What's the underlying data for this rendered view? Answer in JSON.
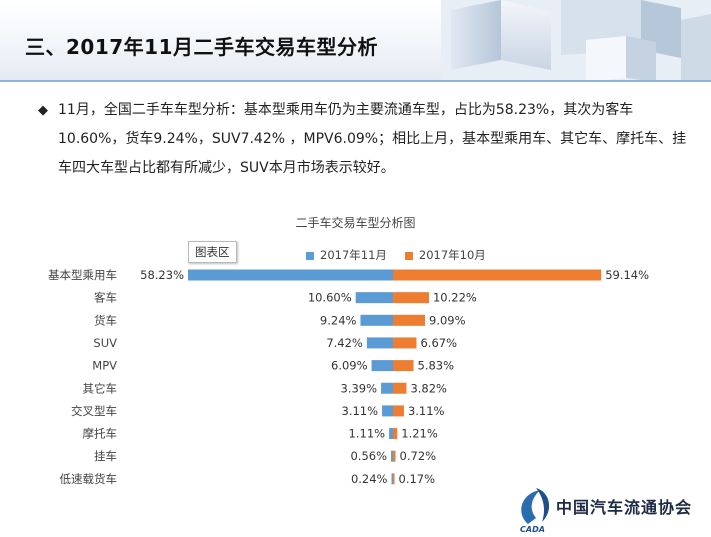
{
  "header": {
    "title": "三、2017年11月二手车交易车型分析"
  },
  "summary": {
    "bullet": "◆",
    "text": "11月，全国二手车车型分析：基本型乘用车仍为主要流通车型，占比为58.23%，其次为客车10.60%，货车9.24%，SUV7.42% ，MPV6.09%；相比上月，基本型乘用车、其它车、摩托车、挂车四大车型占比都有所减少，SUV本月市场表示较好。"
  },
  "chart_area_tag": "图表区",
  "logo": {
    "name": "中国汽车流通协会"
  },
  "chart_data": {
    "type": "bar",
    "orientation": "horizontal-diverging",
    "title": "二手车交易车型分析图",
    "categories": [
      "基本型乘用车",
      "客车",
      "货车",
      "SUV",
      "MPV",
      "其它车",
      "交叉型车",
      "摩托车",
      "挂车",
      "低速载货车"
    ],
    "series": [
      {
        "name": "2017年11月",
        "color": "#5b9bd5",
        "direction": "left",
        "values": [
          58.23,
          10.6,
          9.24,
          7.42,
          6.09,
          3.39,
          3.11,
          1.11,
          0.56,
          0.24
        ],
        "labels": [
          "58.23%",
          "10.60%",
          "9.24%",
          "7.42%",
          "6.09%",
          "3.39%",
          "3.11%",
          "1.11%",
          "0.56%",
          "0.24%"
        ]
      },
      {
        "name": "2017年10月",
        "color": "#ed7d31",
        "direction": "right",
        "values": [
          59.14,
          10.22,
          9.09,
          6.67,
          5.83,
          3.82,
          3.11,
          1.21,
          0.72,
          0.17
        ],
        "labels": [
          "59.14%",
          "10.22%",
          "9.09%",
          "6.67%",
          "5.83%",
          "3.82%",
          "3.11%",
          "1.21%",
          "0.72%",
          "0.17%"
        ]
      }
    ],
    "legend_position": "top-center",
    "grid": false
  }
}
